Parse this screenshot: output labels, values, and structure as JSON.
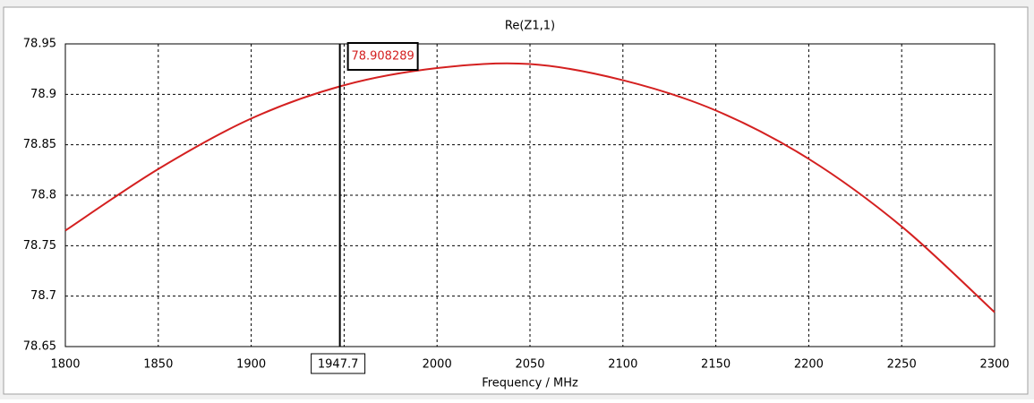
{
  "chart_data": {
    "type": "line",
    "title": "Re(Z1,1)",
    "x_label": "Frequency / MHz",
    "x": [
      1800,
      1850,
      1900,
      1950,
      2000,
      2050,
      2100,
      2150,
      2200,
      2250,
      2300
    ],
    "series": [
      {
        "color": "#d42020",
        "values": [
          78.765,
          78.826,
          78.876,
          78.909,
          78.926,
          78.93,
          78.914,
          78.884,
          78.836,
          78.769,
          78.684
        ]
      }
    ],
    "xlim": [
      1800,
      2300
    ],
    "ylim": [
      78.65,
      78.95
    ],
    "xticks": [
      1800,
      1850,
      1900,
      1950,
      2000,
      2050,
      2100,
      2150,
      2200,
      2250,
      2300
    ],
    "yticks": [
      78.65,
      78.7,
      78.75,
      78.8,
      78.85,
      78.9,
      78.95
    ],
    "grid": true,
    "marker": {
      "x": 1947.7,
      "y": 78.908289
    }
  }
}
